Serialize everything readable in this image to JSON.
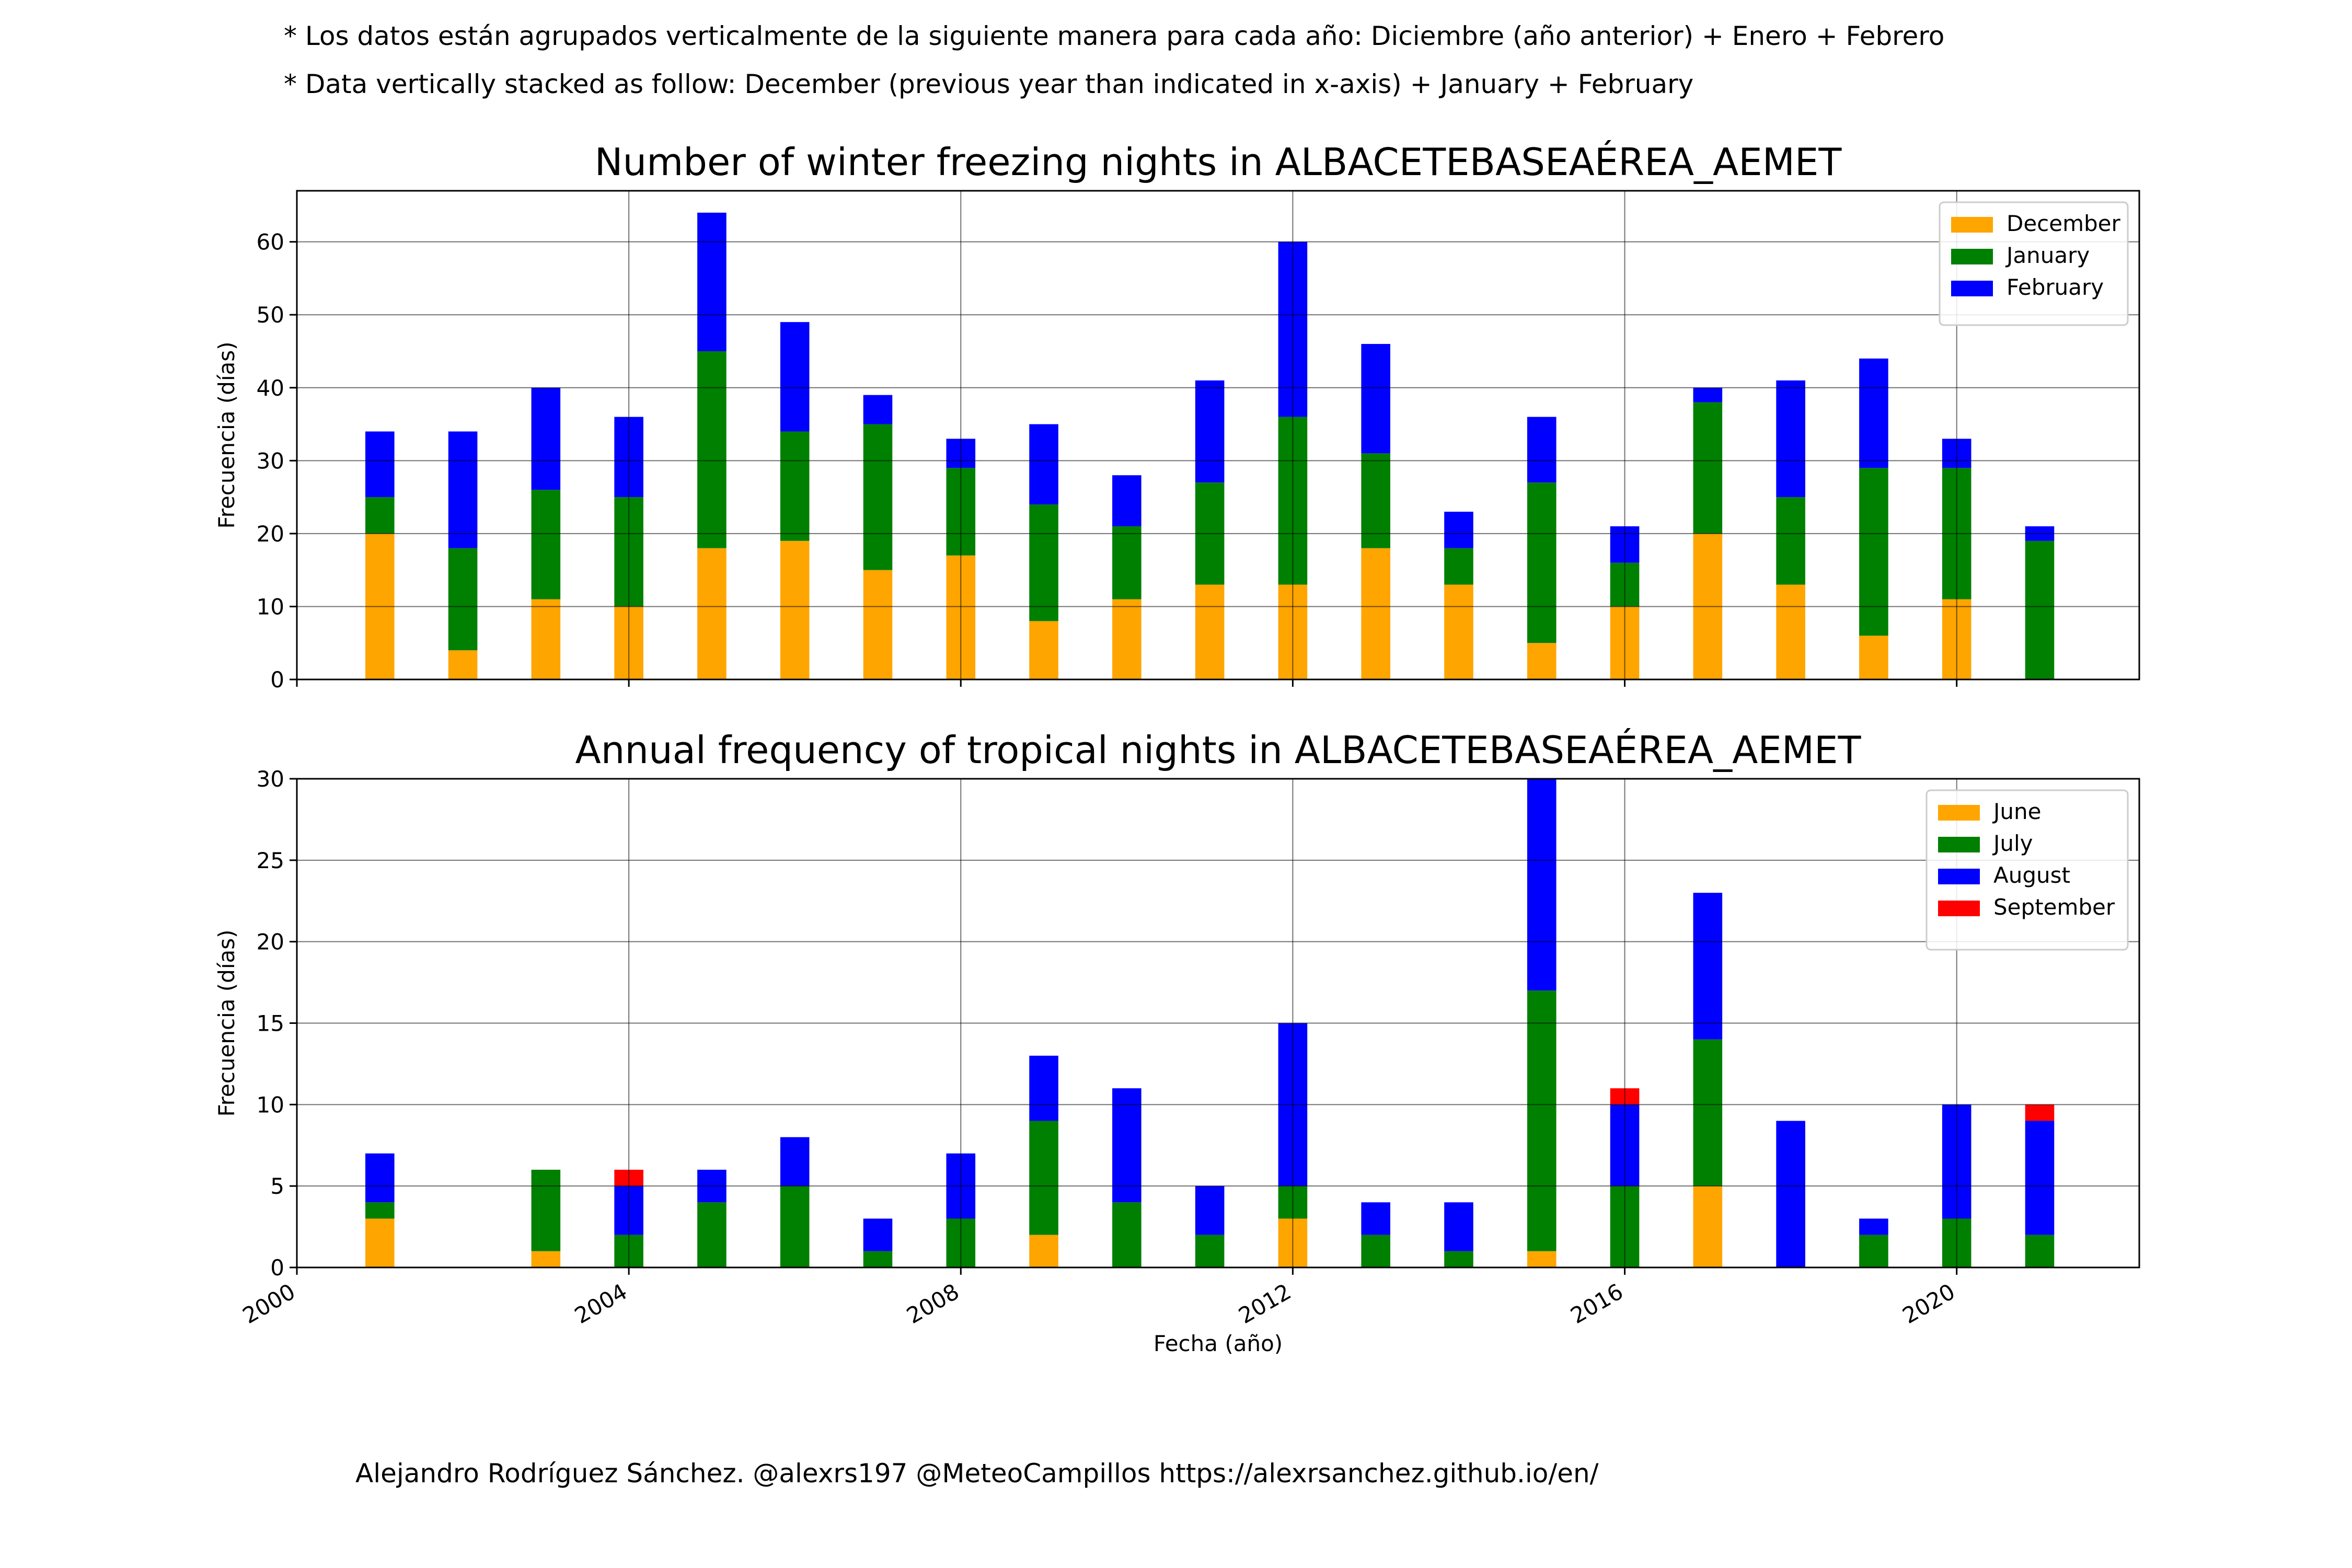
{
  "notes": {
    "es": "* Los datos están agrupados verticalmente de la siguiente manera para cada año: Diciembre (año anterior) + Enero  + Febrero",
    "en": "* Data vertically stacked as follow: December (previous year than indicated in x-axis) + January  + February"
  },
  "credit": "Alejandro Rodríguez Sánchez. @alexrs197 @MeteoCampillos   https://alexrsanchez.github.io/en/",
  "chart_data": [
    {
      "type": "bar",
      "stacked": true,
      "title": "Number of winter freezing nights in ALBACETEBASEAÉREA_AEMET",
      "xlabel": "",
      "ylabel": "Frecuencia (días)",
      "xlim": [
        2000,
        2022.2
      ],
      "ylim": [
        0,
        67
      ],
      "yticks": [
        0,
        10,
        20,
        30,
        40,
        50,
        60
      ],
      "xticks": [
        2000,
        2004,
        2008,
        2012,
        2016,
        2020
      ],
      "show_xtick_labels": false,
      "grid": true,
      "legend_position": "top-right",
      "categories": [
        2001,
        2002,
        2003,
        2004,
        2005,
        2006,
        2007,
        2008,
        2009,
        2010,
        2011,
        2012,
        2013,
        2014,
        2015,
        2016,
        2017,
        2018,
        2019,
        2020,
        2021
      ],
      "series": [
        {
          "name": "December",
          "color": "#ffa500",
          "values": [
            20,
            4,
            11,
            10,
            18,
            19,
            15,
            17,
            8,
            11,
            13,
            13,
            18,
            13,
            5,
            10,
            20,
            13,
            6,
            11,
            0
          ]
        },
        {
          "name": "January",
          "color": "#008000",
          "values": [
            5,
            14,
            15,
            15,
            27,
            15,
            20,
            12,
            16,
            10,
            14,
            23,
            13,
            5,
            22,
            6,
            18,
            12,
            23,
            18,
            19
          ]
        },
        {
          "name": "February",
          "color": "#0000ff",
          "values": [
            9,
            16,
            14,
            11,
            19,
            15,
            4,
            4,
            11,
            7,
            14,
            24,
            15,
            5,
            9,
            5,
            2,
            16,
            15,
            4,
            2
          ]
        }
      ]
    },
    {
      "type": "bar",
      "stacked": true,
      "title": "Annual frequency of tropical nights in ALBACETEBASEAÉREA_AEMET",
      "xlabel": "Fecha (año)",
      "ylabel": "Frecuencia (días)",
      "xlim": [
        2000,
        2022.2
      ],
      "ylim": [
        0,
        30
      ],
      "yticks": [
        0,
        5,
        10,
        15,
        20,
        25,
        30
      ],
      "xticks": [
        2000,
        2004,
        2008,
        2012,
        2016,
        2020
      ],
      "show_xtick_labels": true,
      "grid": true,
      "legend_position": "top-right",
      "categories": [
        2001,
        2002,
        2003,
        2004,
        2005,
        2006,
        2007,
        2008,
        2009,
        2010,
        2011,
        2012,
        2013,
        2014,
        2015,
        2016,
        2017,
        2018,
        2019,
        2020,
        2021
      ],
      "series": [
        {
          "name": "June",
          "color": "#ffa500",
          "values": [
            3,
            0,
            1,
            0,
            0,
            0,
            0,
            0,
            2,
            0,
            0,
            3,
            0,
            0,
            1,
            0,
            5,
            0,
            0,
            0,
            0
          ]
        },
        {
          "name": "July",
          "color": "#008000",
          "values": [
            1,
            0,
            5,
            2,
            4,
            5,
            1,
            3,
            7,
            4,
            2,
            2,
            2,
            1,
            16,
            5,
            9,
            0,
            2,
            3,
            2
          ]
        },
        {
          "name": "August",
          "color": "#0000ff",
          "values": [
            3,
            0,
            0,
            3,
            2,
            3,
            2,
            4,
            4,
            7,
            3,
            10,
            2,
            3,
            13,
            5,
            9,
            9,
            1,
            7,
            7
          ]
        },
        {
          "name": "September",
          "color": "#ff0000",
          "values": [
            0,
            0,
            0,
            1,
            0,
            0,
            0,
            0,
            0,
            0,
            0,
            0,
            0,
            0,
            0,
            1,
            0,
            0,
            0,
            0,
            1
          ]
        }
      ]
    }
  ]
}
